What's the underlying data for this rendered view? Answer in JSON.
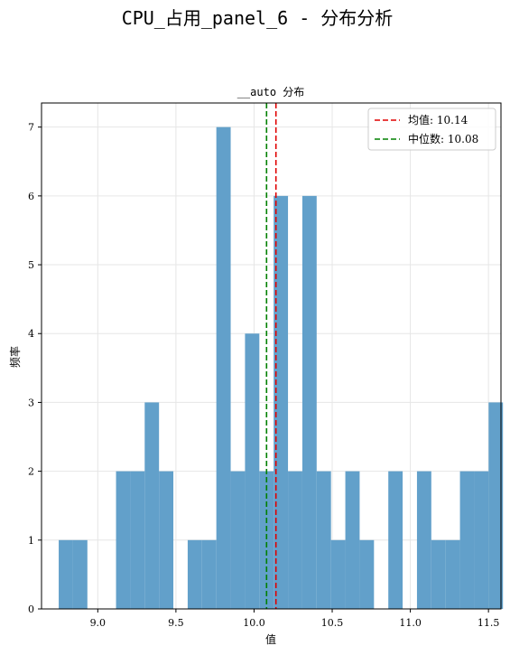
{
  "chart_data": {
    "type": "bar",
    "suptitle": "CPU_占用_panel_6 - 分布分析",
    "title": "__auto 分布",
    "xlabel": "值",
    "ylabel": "频率",
    "xlim": [
      8.64,
      11.58
    ],
    "ylim": [
      0,
      7.35
    ],
    "xticks": [
      "9.0",
      "9.5",
      "10.0",
      "10.5",
      "11.0",
      "11.5"
    ],
    "xtick_values": [
      9.0,
      9.5,
      10.0,
      10.5,
      11.0,
      11.5
    ],
    "yticks": [
      "0",
      "1",
      "2",
      "3",
      "4",
      "5",
      "6",
      "7"
    ],
    "yticks_values": [
      0,
      1,
      2,
      3,
      4,
      5,
      6,
      7
    ],
    "bin_start": 8.75,
    "bin_width": 0.0917,
    "counts": [
      1,
      1,
      0,
      0,
      2,
      2,
      3,
      2,
      0,
      1,
      1,
      7,
      2,
      4,
      2,
      6,
      2,
      6,
      2,
      1,
      2,
      1,
      0,
      2,
      0,
      2,
      1,
      1,
      2,
      2,
      3
    ],
    "bar_color": "#62a0ca",
    "grid": true,
    "lines": [
      {
        "label": "均值: 10.14",
        "x": 10.14,
        "color": "#e00000",
        "style": "dashed"
      },
      {
        "label": "中位数: 10.08",
        "x": 10.08,
        "color": "#008000",
        "style": "dashed"
      }
    ],
    "legend_position": "top-right"
  }
}
